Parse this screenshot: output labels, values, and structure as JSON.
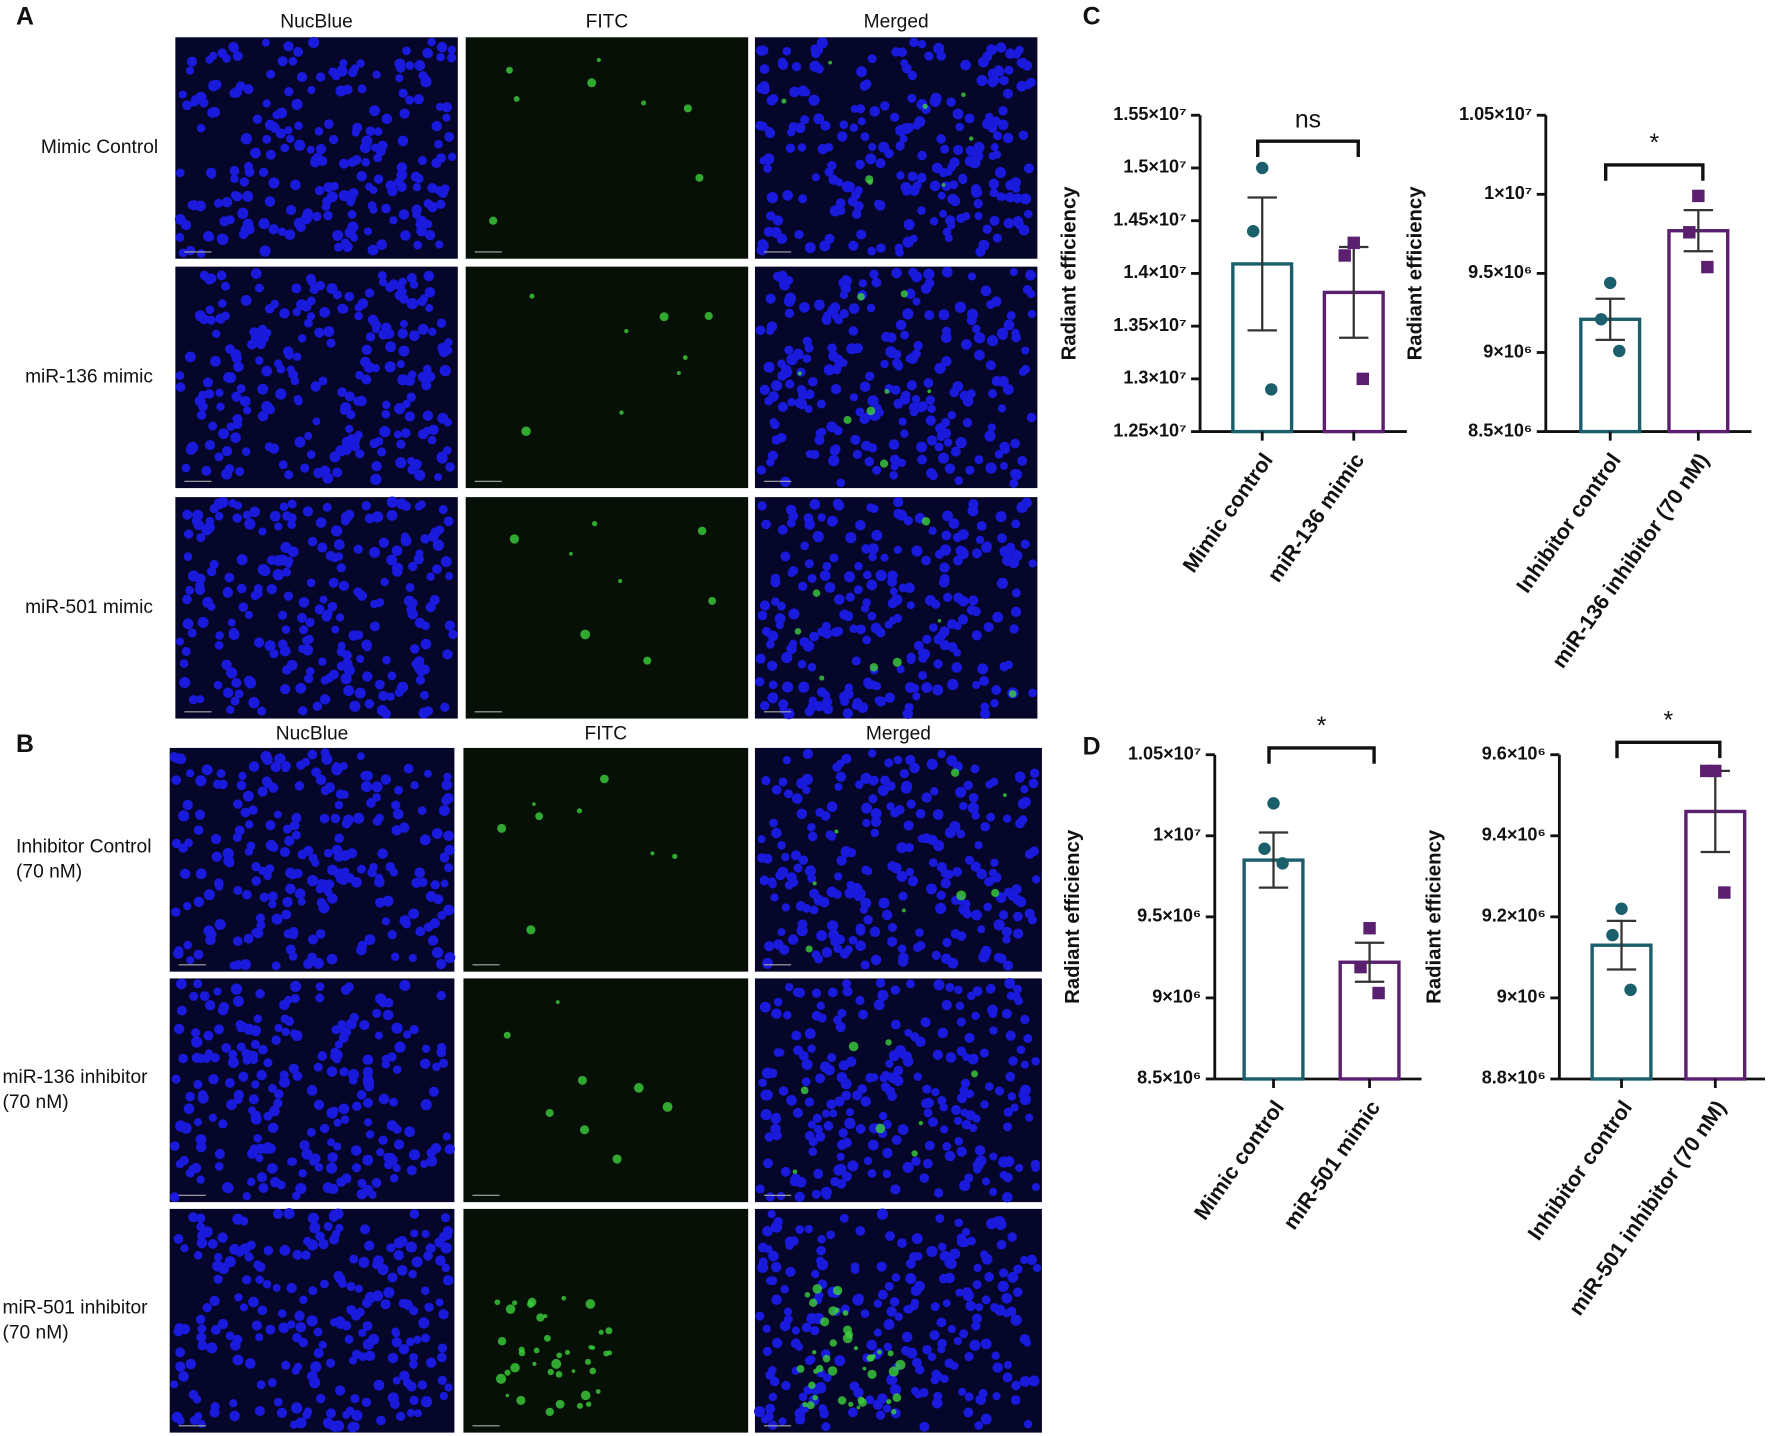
{
  "panel_labels": [
    "A",
    "B",
    "C",
    "D"
  ],
  "panels": [
    {
      "columns": [
        "NucBlue",
        "FITC",
        "Merged"
      ],
      "rows": [
        [
          "Mimic Control"
        ],
        [
          "miR-136  mimic"
        ],
        [
          "miR-501 mimic"
        ]
      ]
    },
    {
      "columns": [
        "NucBlue",
        "FITC",
        "Merged"
      ],
      "rows": [
        [
          "Inhibitor Control",
          "(70 nM)"
        ],
        [
          "miR-136  inhibitor",
          "(70 nM)"
        ],
        [
          "miR-501 inhibitor",
          "(70 nM)"
        ]
      ]
    }
  ],
  "chart_data": [
    {
      "type": "bar",
      "y_label": "Radiant efficiency",
      "annotation": "ns",
      "categories": [
        "Mimic control",
        "miR-136 mimic"
      ],
      "values": [
        14090000,
        13820000
      ],
      "errors": [
        630000,
        430000
      ],
      "points": [
        [
          15000000,
          14400000,
          12900000
        ],
        [
          14290000,
          14170000,
          13000000
        ]
      ],
      "colors": [
        "#1b5f6c",
        "#5b1f70"
      ],
      "ylim": [
        12500000,
        15500000
      ],
      "yticks": [
        {
          "value": 12500000,
          "label": "1.25×10⁷"
        },
        {
          "value": 13000000,
          "label": "1.3×10⁷"
        },
        {
          "value": 13500000,
          "label": "1.35×10⁷"
        },
        {
          "value": 14000000,
          "label": "1.4×10⁷"
        },
        {
          "value": 14500000,
          "label": "1.45×10⁷"
        },
        {
          "value": 15000000,
          "label": "1.5×10⁷"
        },
        {
          "value": 15500000,
          "label": "1.55×10⁷"
        }
      ]
    },
    {
      "type": "bar",
      "y_label": "Radiant efficiency",
      "annotation": "*",
      "categories": [
        "Inhibitor control",
        "miR-136 inhibitor (70 nM)"
      ],
      "values": [
        9210000,
        9770000
      ],
      "errors": [
        130000,
        130000
      ],
      "points": [
        [
          9440000,
          9210000,
          9010000
        ],
        [
          9990000,
          9760000,
          9540000
        ]
      ],
      "colors": [
        "#1b5f6c",
        "#5b1f70"
      ],
      "ylim": [
        8500000,
        10500000
      ],
      "yticks": [
        {
          "value": 8500000,
          "label": "8.5×10⁶"
        },
        {
          "value": 9000000,
          "label": "9×10⁶"
        },
        {
          "value": 9500000,
          "label": "9.5×10⁶"
        },
        {
          "value": 10000000,
          "label": "1×10⁷"
        },
        {
          "value": 10500000,
          "label": "1.05×10⁷"
        }
      ]
    },
    {
      "type": "bar",
      "y_label": "Radiant efficiency",
      "annotation": "*",
      "categories": [
        "Mimic control",
        "miR-501 mimic"
      ],
      "values": [
        9850000,
        9220000
      ],
      "errors": [
        170000,
        120000
      ],
      "points": [
        [
          10200000,
          9920000,
          9830000
        ],
        [
          9430000,
          9190000,
          9030000
        ]
      ],
      "colors": [
        "#1b5f6c",
        "#5b1f70"
      ],
      "ylim": [
        8500000,
        10500000
      ],
      "yticks": [
        {
          "value": 8500000,
          "label": "8.5×10⁶"
        },
        {
          "value": 9000000,
          "label": "9×10⁶"
        },
        {
          "value": 9500000,
          "label": "9.5×10⁶"
        },
        {
          "value": 10000000,
          "label": "1×10⁷"
        },
        {
          "value": 10500000,
          "label": "1.05×10⁷"
        }
      ]
    },
    {
      "type": "bar",
      "y_label": "Radiant efficiency",
      "annotation": "*",
      "categories": [
        "Inhibitor control",
        "miR-501 inhibitor (70 nM)"
      ],
      "values": [
        9130000,
        9460000
      ],
      "errors": [
        60000,
        100000
      ],
      "points": [
        [
          9220000,
          9155000,
          9020000
        ],
        [
          9560000,
          9560000,
          9260000
        ]
      ],
      "colors": [
        "#1b5f6c",
        "#5b1f70"
      ],
      "ylim": [
        8800000,
        9600000
      ],
      "yticks": [
        {
          "value": 8800000,
          "label": "8.8×10⁶"
        },
        {
          "value": 9000000,
          "label": "9×10⁶"
        },
        {
          "value": 9200000,
          "label": "9.2×10⁶"
        },
        {
          "value": 9400000,
          "label": "9.4×10⁶"
        },
        {
          "value": 9600000,
          "label": "9.6×10⁶"
        }
      ]
    }
  ]
}
